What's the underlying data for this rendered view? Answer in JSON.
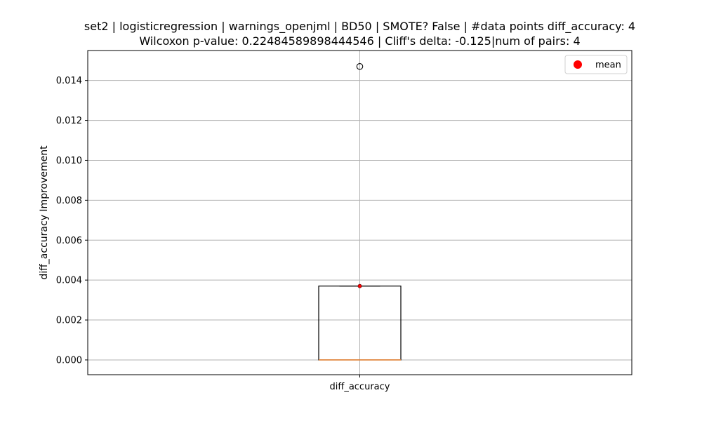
{
  "chart_data": {
    "type": "box",
    "title_line1": "set2 | logisticregression | warnings_openjml | BD50 | SMOTE? False | #data points diff_accuracy: 4",
    "title_line2": "Wilcoxon p-value: 0.22484589898444546 | Cliff's delta: -0.125|num of pairs: 4",
    "xlabel": "",
    "ylabel": "diff_accuracy Improvement",
    "categories": [
      "diff_accuracy"
    ],
    "ylim": [
      -0.00074,
      0.0155
    ],
    "yticks": [
      0.0,
      0.002,
      0.004,
      0.006,
      0.008,
      0.01,
      0.012,
      0.014
    ],
    "ytick_labels": [
      "0.000",
      "0.002",
      "0.004",
      "0.006",
      "0.008",
      "0.010",
      "0.012",
      "0.014"
    ],
    "grid": true,
    "box": {
      "q1": 0.0,
      "median": 0.0,
      "q3": 0.0037,
      "whisker_low": 0.0,
      "whisker_high": 0.0037,
      "mean": 0.0037,
      "outliers": [
        0.0147
      ]
    },
    "legend": {
      "position": "top-right",
      "entries": [
        {
          "label": "mean",
          "color": "#ff0000"
        }
      ]
    },
    "colors": {
      "median": "#e8873a",
      "mean": "#ff0000",
      "grid": "#b0b0b0"
    }
  }
}
